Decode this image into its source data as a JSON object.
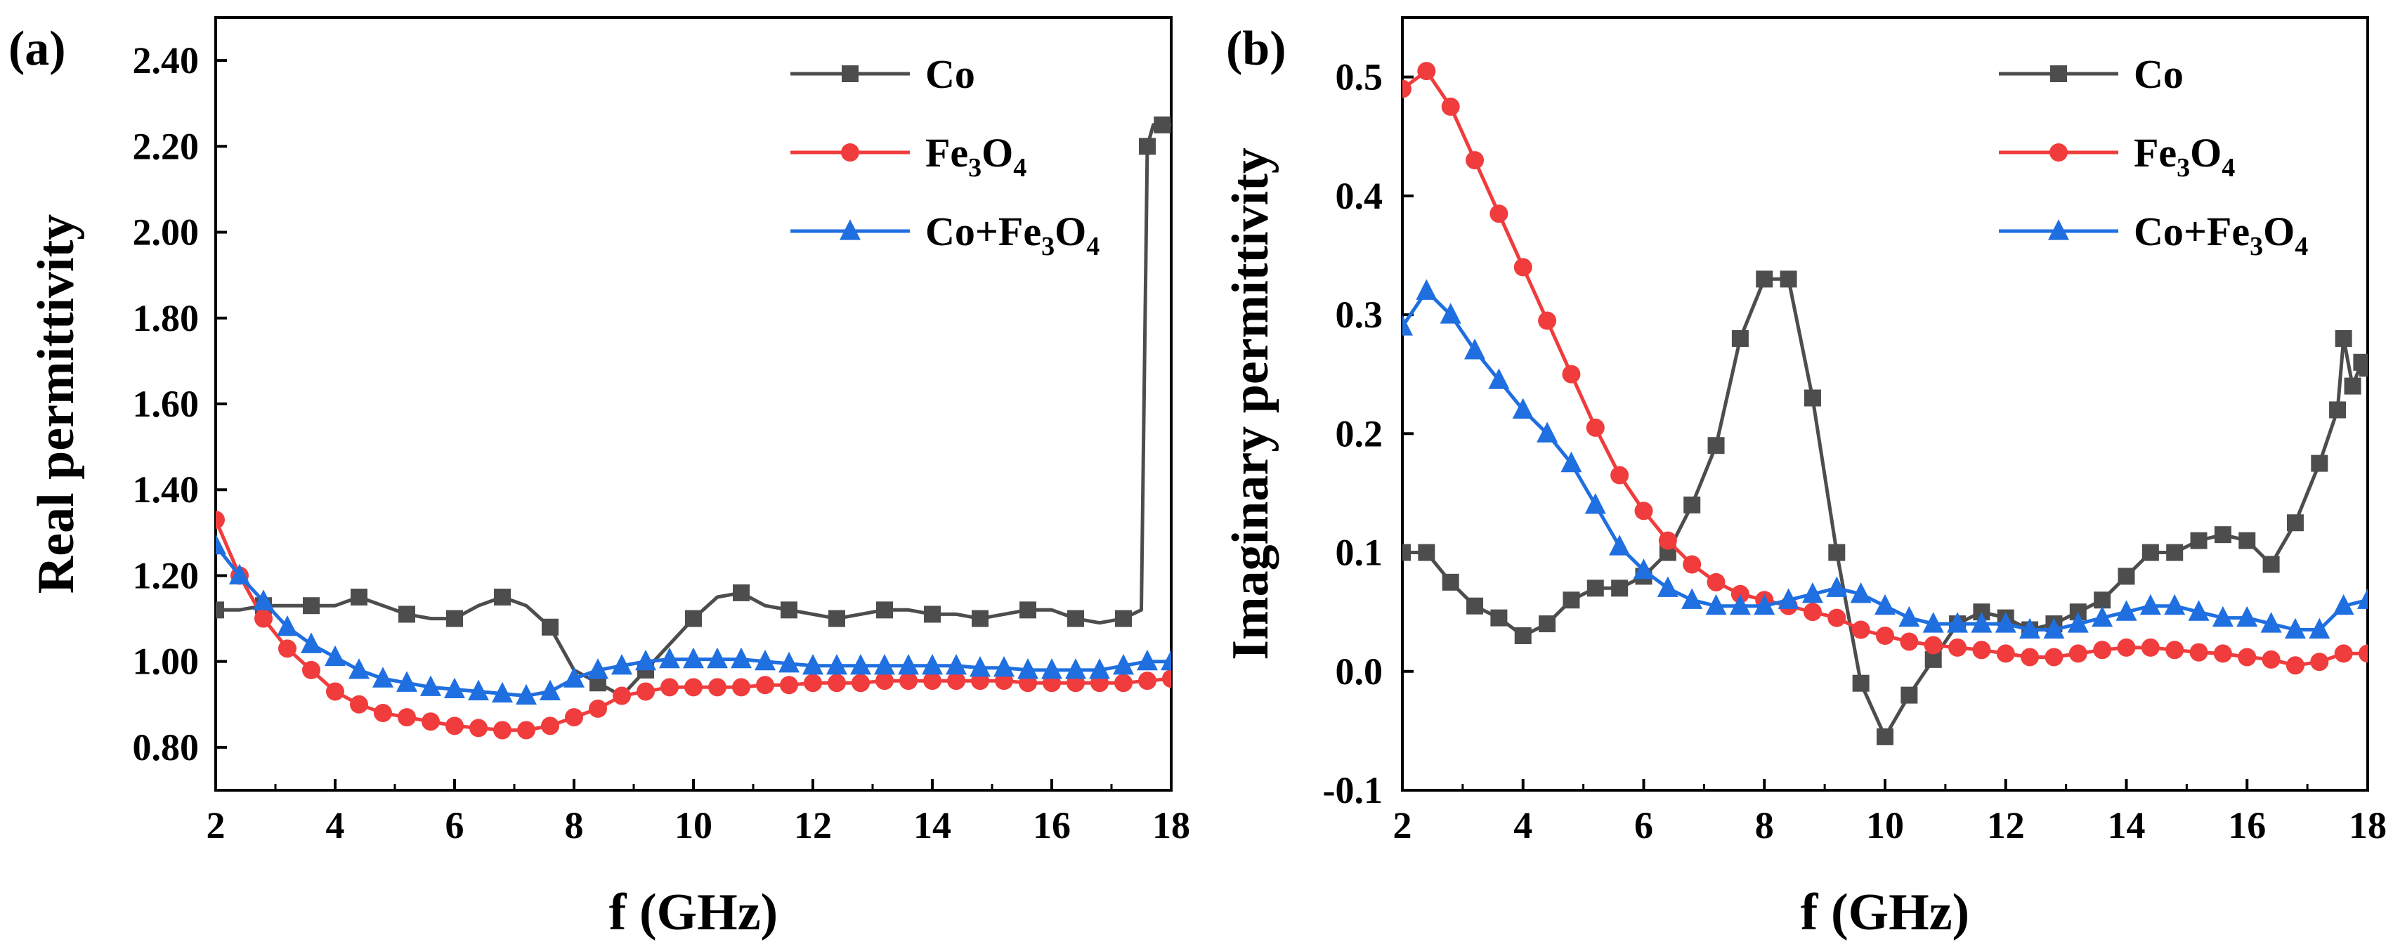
{
  "chart_data": [
    {
      "type": "line",
      "panel_label": "(a)",
      "xlabel": "f (GHz)",
      "ylabel": "Real permittivity",
      "xlim": [
        2,
        18
      ],
      "ylim": [
        0.7,
        2.5
      ],
      "xticks": [
        2,
        4,
        6,
        8,
        10,
        12,
        14,
        16,
        18
      ],
      "xtick_labels": [
        "2",
        "4",
        "6",
        "8",
        "10",
        "12",
        "14",
        "16",
        "18"
      ],
      "yticks": [
        0.8,
        1.0,
        1.2,
        1.4,
        1.6,
        1.8,
        2.0,
        2.2,
        2.4
      ],
      "ytick_labels": [
        "0.80",
        "1.00",
        "1.20",
        "1.40",
        "1.60",
        "1.80",
        "2.00",
        "2.20",
        "2.40"
      ],
      "legend_position": "top-right",
      "series": [
        {
          "name": "Co",
          "label_main": "Co",
          "label_sub": "",
          "label_tail": "",
          "color": "#4d4d4d",
          "marker": "square",
          "x": [
            2.0,
            2.4,
            2.8,
            3.2,
            3.6,
            4.0,
            4.4,
            4.8,
            5.2,
            5.6,
            6.0,
            6.4,
            6.8,
            7.2,
            7.6,
            8.0,
            8.4,
            8.8,
            9.2,
            9.6,
            10.0,
            10.4,
            10.8,
            11.2,
            11.6,
            12.0,
            12.4,
            12.8,
            13.2,
            13.6,
            14.0,
            14.4,
            14.8,
            15.2,
            15.6,
            16.0,
            16.4,
            16.8,
            17.2,
            17.5,
            17.6,
            17.7,
            17.85,
            18.0
          ],
          "y": [
            1.12,
            1.12,
            1.13,
            1.13,
            1.13,
            1.13,
            1.15,
            1.13,
            1.11,
            1.1,
            1.1,
            1.13,
            1.15,
            1.13,
            1.08,
            0.98,
            0.95,
            0.92,
            0.98,
            1.04,
            1.1,
            1.15,
            1.16,
            1.13,
            1.12,
            1.11,
            1.1,
            1.11,
            1.12,
            1.12,
            1.11,
            1.11,
            1.1,
            1.11,
            1.12,
            1.12,
            1.1,
            1.09,
            1.1,
            1.12,
            2.2,
            2.25,
            2.25,
            2.25
          ],
          "marker_every": 2
        },
        {
          "name": "Fe3O4",
          "label_main": "Fe",
          "label_sub": "3",
          "label_tail": "O4",
          "color": "#f03c3c",
          "marker": "circle",
          "x": [
            2.0,
            2.4,
            2.8,
            3.2,
            3.6,
            4.0,
            4.4,
            4.8,
            5.2,
            5.6,
            6.0,
            6.4,
            6.8,
            7.2,
            7.6,
            8.0,
            8.4,
            8.8,
            9.2,
            9.6,
            10.0,
            10.4,
            10.8,
            11.2,
            11.6,
            12.0,
            12.4,
            12.8,
            13.2,
            13.6,
            14.0,
            14.4,
            14.8,
            15.2,
            15.6,
            16.0,
            16.4,
            16.8,
            17.2,
            17.6,
            18.0
          ],
          "y": [
            1.33,
            1.2,
            1.1,
            1.03,
            0.98,
            0.93,
            0.9,
            0.88,
            0.87,
            0.86,
            0.85,
            0.845,
            0.84,
            0.84,
            0.85,
            0.87,
            0.89,
            0.92,
            0.93,
            0.94,
            0.94,
            0.94,
            0.94,
            0.945,
            0.945,
            0.95,
            0.95,
            0.95,
            0.955,
            0.955,
            0.955,
            0.955,
            0.955,
            0.955,
            0.95,
            0.95,
            0.95,
            0.95,
            0.95,
            0.955,
            0.96
          ],
          "marker_every": 1
        },
        {
          "name": "Co+Fe3O4",
          "label_main": "Co+Fe",
          "label_sub": "3",
          "label_tail": "O4",
          "color": "#1f6fe0",
          "marker": "triangle",
          "x": [
            2.0,
            2.4,
            2.8,
            3.2,
            3.6,
            4.0,
            4.4,
            4.8,
            5.2,
            5.6,
            6.0,
            6.4,
            6.8,
            7.2,
            7.6,
            8.0,
            8.4,
            8.8,
            9.2,
            9.6,
            10.0,
            10.4,
            10.8,
            11.2,
            11.6,
            12.0,
            12.4,
            12.8,
            13.2,
            13.6,
            14.0,
            14.4,
            14.8,
            15.2,
            15.6,
            16.0,
            16.4,
            16.8,
            17.2,
            17.6,
            18.0
          ],
          "y": [
            1.27,
            1.2,
            1.14,
            1.08,
            1.04,
            1.01,
            0.98,
            0.96,
            0.95,
            0.94,
            0.935,
            0.93,
            0.925,
            0.92,
            0.93,
            0.96,
            0.98,
            0.99,
            1.0,
            1.005,
            1.005,
            1.005,
            1.005,
            1.0,
            0.995,
            0.99,
            0.99,
            0.99,
            0.99,
            0.99,
            0.99,
            0.99,
            0.985,
            0.985,
            0.98,
            0.98,
            0.98,
            0.98,
            0.99,
            1.0,
            1.0
          ],
          "marker_every": 1
        }
      ]
    },
    {
      "type": "line",
      "panel_label": "(b)",
      "xlabel": "f (GHz)",
      "ylabel": "Imaginary permittivity",
      "xlim": [
        2,
        18
      ],
      "ylim": [
        -0.1,
        0.55
      ],
      "xticks": [
        2,
        4,
        6,
        8,
        10,
        12,
        14,
        16,
        18
      ],
      "xtick_labels": [
        "2",
        "4",
        "6",
        "8",
        "10",
        "12",
        "14",
        "16",
        "18"
      ],
      "yticks": [
        -0.1,
        0.0,
        0.1,
        0.2,
        0.3,
        0.4,
        0.5
      ],
      "ytick_labels": [
        "-0.1",
        "0.0",
        "0.1",
        "0.2",
        "0.3",
        "0.4",
        "0.5"
      ],
      "legend_position": "top-right",
      "series": [
        {
          "name": "Co",
          "label_main": "Co",
          "label_sub": "",
          "label_tail": "",
          "color": "#4d4d4d",
          "marker": "square",
          "x": [
            2.0,
            2.4,
            2.8,
            3.2,
            3.6,
            4.0,
            4.4,
            4.8,
            5.2,
            5.6,
            6.0,
            6.4,
            6.8,
            7.2,
            7.6,
            8.0,
            8.4,
            8.8,
            9.2,
            9.6,
            10.0,
            10.4,
            10.8,
            11.2,
            11.6,
            12.0,
            12.4,
            12.8,
            13.2,
            13.6,
            14.0,
            14.4,
            14.8,
            15.2,
            15.6,
            16.0,
            16.4,
            16.8,
            17.2,
            17.5,
            17.6,
            17.75,
            17.9,
            18.0
          ],
          "y": [
            0.1,
            0.1,
            0.075,
            0.055,
            0.045,
            0.03,
            0.04,
            0.06,
            0.07,
            0.07,
            0.08,
            0.1,
            0.14,
            0.19,
            0.28,
            0.33,
            0.33,
            0.23,
            0.1,
            -0.01,
            -0.055,
            -0.02,
            0.01,
            0.04,
            0.05,
            0.045,
            0.035,
            0.04,
            0.05,
            0.06,
            0.08,
            0.1,
            0.1,
            0.11,
            0.115,
            0.11,
            0.09,
            0.125,
            0.175,
            0.22,
            0.28,
            0.24,
            0.26,
            0.255
          ],
          "marker_every": 1
        },
        {
          "name": "Fe3O4",
          "label_main": "Fe",
          "label_sub": "3",
          "label_tail": "O4",
          "color": "#f03c3c",
          "marker": "circle",
          "x": [
            2.0,
            2.4,
            2.8,
            3.2,
            3.6,
            4.0,
            4.4,
            4.8,
            5.2,
            5.6,
            6.0,
            6.4,
            6.8,
            7.2,
            7.6,
            8.0,
            8.4,
            8.8,
            9.2,
            9.6,
            10.0,
            10.4,
            10.8,
            11.2,
            11.6,
            12.0,
            12.4,
            12.8,
            13.2,
            13.6,
            14.0,
            14.4,
            14.8,
            15.2,
            15.6,
            16.0,
            16.4,
            16.8,
            17.2,
            17.6,
            18.0
          ],
          "y": [
            0.49,
            0.505,
            0.475,
            0.43,
            0.385,
            0.34,
            0.295,
            0.25,
            0.205,
            0.165,
            0.135,
            0.11,
            0.09,
            0.075,
            0.065,
            0.06,
            0.055,
            0.05,
            0.045,
            0.035,
            0.03,
            0.025,
            0.022,
            0.02,
            0.018,
            0.015,
            0.012,
            0.012,
            0.015,
            0.018,
            0.02,
            0.02,
            0.018,
            0.016,
            0.015,
            0.012,
            0.01,
            0.005,
            0.008,
            0.015,
            0.015
          ],
          "marker_every": 1
        },
        {
          "name": "Co+Fe3O4",
          "label_main": "Co+Fe",
          "label_sub": "3",
          "label_tail": "O4",
          "color": "#1f6fe0",
          "marker": "triangle",
          "x": [
            2.0,
            2.4,
            2.8,
            3.2,
            3.6,
            4.0,
            4.4,
            4.8,
            5.2,
            5.6,
            6.0,
            6.4,
            6.8,
            7.2,
            7.6,
            8.0,
            8.4,
            8.8,
            9.2,
            9.6,
            10.0,
            10.4,
            10.8,
            11.2,
            11.6,
            12.0,
            12.4,
            12.8,
            13.2,
            13.6,
            14.0,
            14.4,
            14.8,
            15.2,
            15.6,
            16.0,
            16.4,
            16.8,
            17.2,
            17.6,
            18.0
          ],
          "y": [
            0.29,
            0.32,
            0.3,
            0.27,
            0.245,
            0.22,
            0.2,
            0.175,
            0.14,
            0.105,
            0.085,
            0.07,
            0.06,
            0.055,
            0.055,
            0.055,
            0.06,
            0.065,
            0.07,
            0.065,
            0.055,
            0.045,
            0.04,
            0.04,
            0.04,
            0.04,
            0.035,
            0.035,
            0.04,
            0.045,
            0.05,
            0.055,
            0.055,
            0.05,
            0.045,
            0.045,
            0.04,
            0.035,
            0.035,
            0.055,
            0.06
          ],
          "marker_every": 1
        }
      ]
    }
  ]
}
